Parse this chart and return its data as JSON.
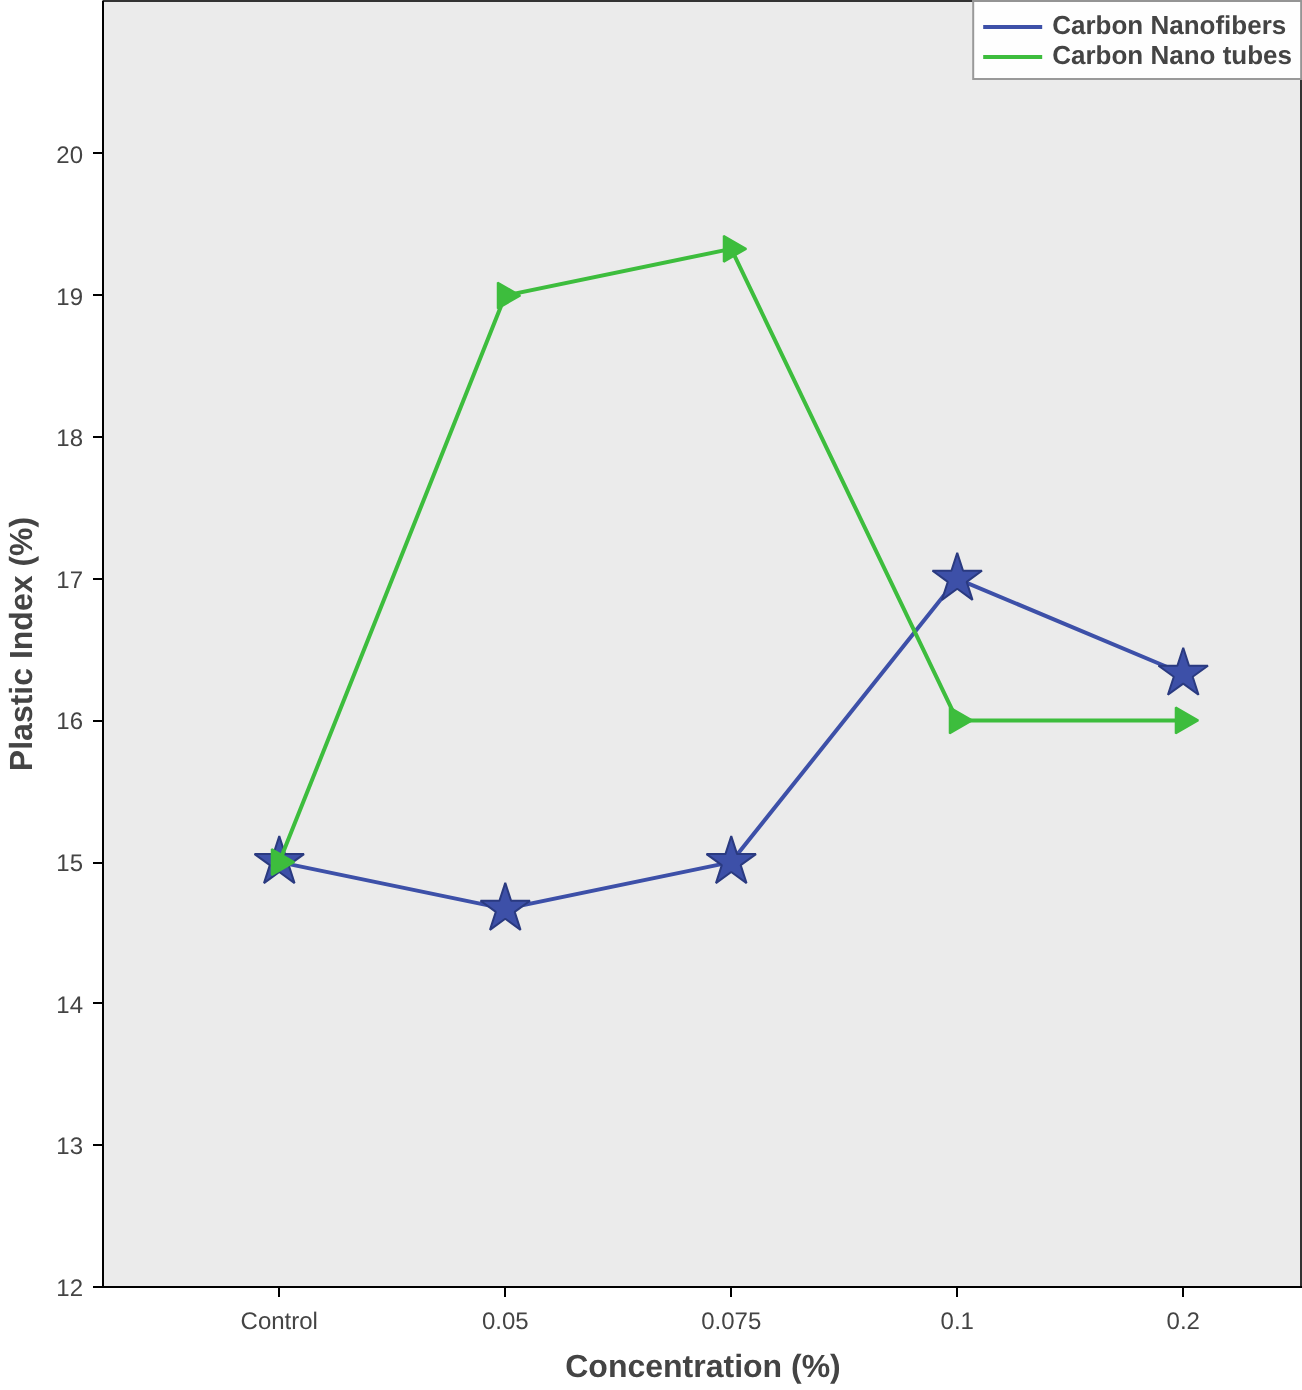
{
  "chart_data": {
    "type": "line",
    "xlabel": "Concentration (%)",
    "ylabel": "Plastic Index (%)",
    "categories": [
      "Control",
      "0.05",
      "0.075",
      "0.1",
      "0.2"
    ],
    "series": [
      {
        "name": "Carbon Nanofibers",
        "color": "#3d50a8",
        "marker": "star",
        "values": [
          15,
          14.67,
          15,
          17,
          16.33
        ]
      },
      {
        "name": "Carbon Nano tubes",
        "color": "#3dbd3d",
        "marker": "triangle",
        "values": [
          15,
          19,
          19.33,
          16,
          16
        ]
      }
    ],
    "ylim": [
      12,
      21.08
    ],
    "yticks": [
      12,
      13,
      14,
      15,
      16,
      17,
      18,
      19,
      20
    ],
    "grid": false,
    "legend": "top right"
  }
}
